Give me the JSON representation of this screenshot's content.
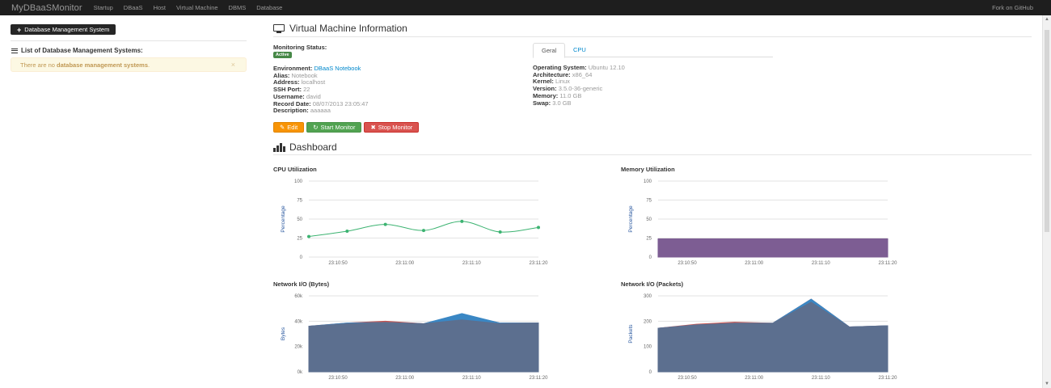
{
  "navbar": {
    "brand": "MyDBaaSMonitor",
    "items": [
      "Startup",
      "DBaaS",
      "Host",
      "Virtual Machine",
      "DBMS",
      "Database"
    ],
    "right_link": "Fork on GitHub"
  },
  "sidebar": {
    "button_label": "Database Management System",
    "heading": "List of Database Management Systems:",
    "alert": {
      "prefix": "There are no ",
      "emphasis": "database management systems",
      "suffix": ".",
      "close": "×"
    }
  },
  "vm": {
    "title": "Virtual Machine Information",
    "monitoring_status_label": "Monitoring Status:",
    "status_badge": "Active",
    "details": [
      {
        "label": "Environment:",
        "value": "DBaaS Notebook",
        "link": true
      },
      {
        "label": "Alias:",
        "value": "Notebook"
      },
      {
        "label": "Address:",
        "value": "localhost"
      },
      {
        "label": "SSH Port:",
        "value": "22"
      },
      {
        "label": "Username:",
        "value": "david"
      },
      {
        "label": "Record Date:",
        "value": "08/07/2013 23:05:47"
      },
      {
        "label": "Description:",
        "value": "aaaaaa"
      }
    ],
    "tabs": [
      "Geral",
      "CPU"
    ],
    "system": [
      {
        "label": "Operating System:",
        "value": "Ubuntu 12.10"
      },
      {
        "label": "Architecture:",
        "value": "x86_64"
      },
      {
        "label": "Kernel:",
        "value": "Linux"
      },
      {
        "label": "Version:",
        "value": "3.5.0-36-generic"
      },
      {
        "label": "Memory:",
        "value": "11.0 GB"
      },
      {
        "label": "Swap:",
        "value": "3.0 GB"
      }
    ],
    "buttons": {
      "edit": "Edit",
      "start": "Start Monitor",
      "stop": "Stop Monitor"
    }
  },
  "dashboard": {
    "title": "Dashboard"
  },
  "chart_data": [
    {
      "type": "line",
      "title": "CPU Utilization",
      "ylabel": "Percentage",
      "ylim": [
        0,
        100
      ],
      "yticks": [
        "0",
        "25",
        "50",
        "75",
        "100"
      ],
      "xticks": [
        "23:10:50",
        "23:11:00",
        "23:11:10",
        "23:11:20"
      ],
      "series": [
        {
          "values": [
            27,
            34,
            43,
            35,
            47,
            33,
            39
          ],
          "color": "#3cb371"
        }
      ]
    },
    {
      "type": "area",
      "title": "Memory Utilization",
      "ylabel": "Percentage",
      "ylim": [
        0,
        100
      ],
      "yticks": [
        "0",
        "25",
        "50",
        "75",
        "100"
      ],
      "xticks": [
        "23:10:50",
        "23:11:00",
        "23:11:10",
        "23:11:20"
      ],
      "series": [
        {
          "values": [
            24,
            24,
            24,
            24,
            24,
            24,
            24
          ],
          "color": "#7d5d93"
        }
      ]
    },
    {
      "type": "area",
      "title": "Network I/O (Bytes)",
      "ylabel": "Bytes",
      "ylim": [
        0,
        60000
      ],
      "yticks": [
        "0k",
        "20k",
        "40k",
        "60k"
      ],
      "xticks": [
        "23:10:50",
        "23:11:00",
        "23:11:10",
        "23:11:20"
      ],
      "series": [
        {
          "values": [
            36000,
            38500,
            40000,
            38000,
            45500,
            38500,
            38500
          ],
          "color": "#c9534f"
        },
        {
          "values": [
            36000,
            38500,
            39000,
            38000,
            46000,
            38500,
            38500
          ],
          "color": "#3a87c4"
        },
        {
          "values": [
            36000,
            38000,
            39000,
            38000,
            41000,
            38000,
            38500
          ],
          "color": "#5c6f8f"
        }
      ]
    },
    {
      "type": "area",
      "title": "Network I/O (Packets)",
      "ylabel": "Packets",
      "ylim": [
        0,
        300
      ],
      "yticks": [
        "0",
        "100",
        "200",
        "300"
      ],
      "xticks": [
        "23:10:50",
        "23:11:00",
        "23:11:10",
        "23:11:20"
      ],
      "series": [
        {
          "values": [
            172,
            188,
            196,
            192,
            287,
            177,
            182
          ],
          "color": "#c9534f"
        },
        {
          "values": [
            172,
            185,
            192,
            192,
            287,
            177,
            182
          ],
          "color": "#3a87c4"
        },
        {
          "values": [
            172,
            185,
            192,
            192,
            275,
            177,
            182
          ],
          "color": "#5c6f8f"
        }
      ]
    }
  ]
}
